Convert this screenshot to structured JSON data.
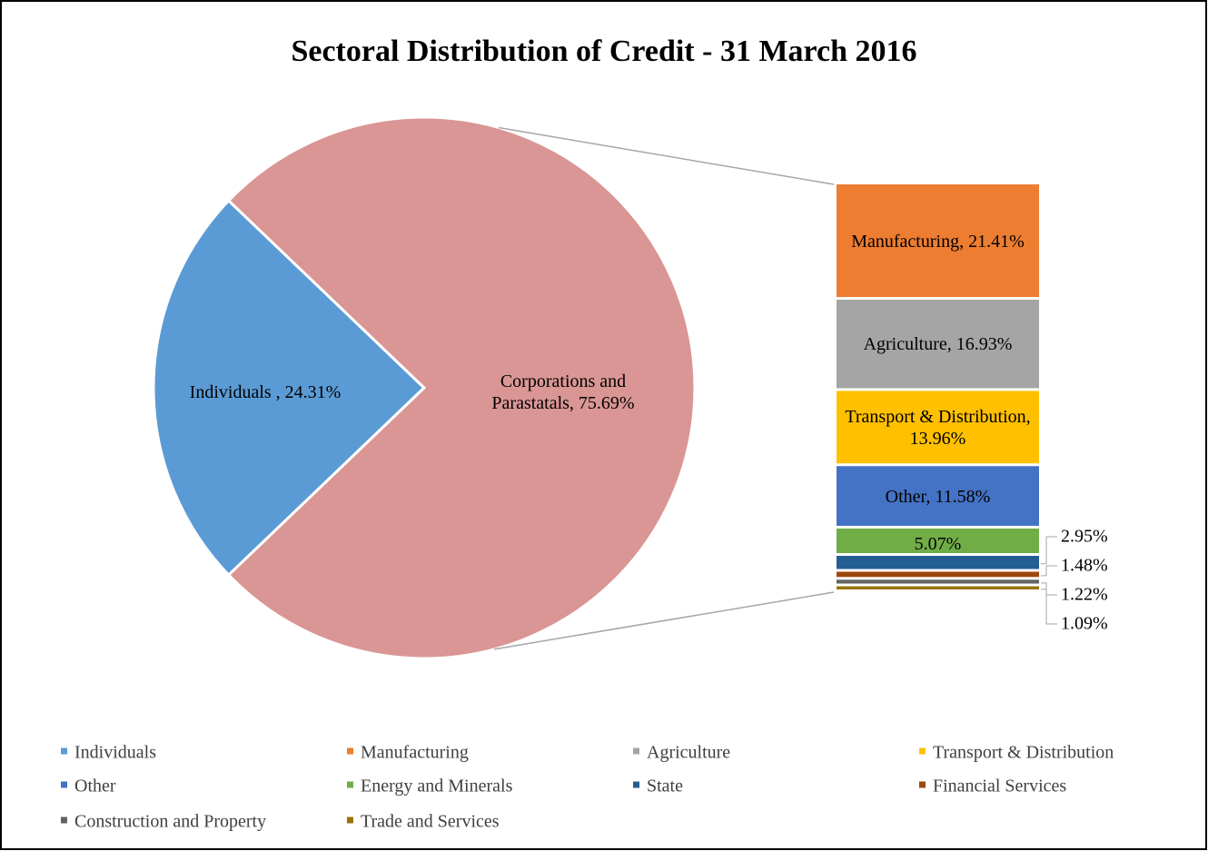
{
  "chart_data": {
    "type": "pie-of-bar",
    "title": "Sectoral Distribution  of Credit - 31 March 2016",
    "pie": {
      "categories": [
        "Individuals",
        "Corporations and Parastatals"
      ],
      "values": [
        24.31,
        75.69
      ],
      "value_labels": [
        "Individuals , 24.31%",
        "Corporations and Parastatals, 75.69%"
      ],
      "colors": [
        "#5b9bd5",
        "#d99694"
      ]
    },
    "bar": {
      "categories": [
        "Manufacturing",
        "Agriculture",
        "Transport & Distribution",
        "Other",
        "Energy and Minerals",
        "State",
        "Financial Services",
        "Construction and Property",
        "Trade and Services"
      ],
      "values": [
        21.41,
        16.93,
        13.96,
        11.58,
        5.07,
        2.95,
        1.48,
        1.22,
        1.09
      ],
      "value_labels": [
        "Manufacturing, 21.41%",
        "Agriculture, 16.93%",
        "Transport & Distribution, 13.96%",
        "Other, 11.58%",
        "5.07%",
        "2.95%",
        "1.48%",
        "1.22%",
        "1.09%"
      ],
      "colors": [
        "#ed7d31",
        "#a5a5a5",
        "#ffc000",
        "#4472c4",
        "#70ad47",
        "#255e91",
        "#9e480e",
        "#636363",
        "#997300"
      ]
    },
    "legend": true
  }
}
